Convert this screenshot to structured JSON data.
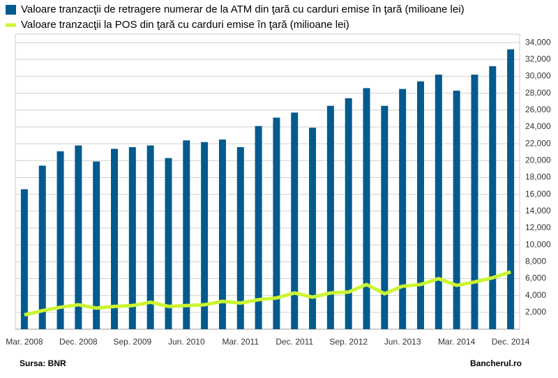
{
  "chart_data": {
    "type": "bar",
    "categories": [
      "Mar. 2008",
      null,
      null,
      "Dec. 2008",
      null,
      null,
      "Sep. 2009",
      null,
      null,
      "Jun. 2010",
      null,
      null,
      "Mar. 2011",
      null,
      null,
      "Dec. 2011",
      null,
      null,
      "Sep. 2012",
      null,
      null,
      "Jun. 2013",
      null,
      null,
      "Mar. 2014",
      null,
      null,
      "Dec. 2014"
    ],
    "series": [
      {
        "name": "Valoare tranzacţii de retragere numerar de la ATM din ţară cu carduri emise în ţară (milioane lei)",
        "type": "bar",
        "color": "#005b8f",
        "values": [
          16600,
          19400,
          21100,
          21800,
          19900,
          21400,
          21600,
          21800,
          20300,
          22400,
          22200,
          22500,
          21600,
          24100,
          25100,
          25700,
          23900,
          26500,
          27400,
          28600,
          26500,
          28500,
          29400,
          30200,
          28300,
          30200,
          31200,
          33200
        ]
      },
      {
        "name": "Valoare tranzacţii la POS din ţară cu carduri emise în ţară (milioane lei)",
        "type": "line",
        "color": "#ccf533",
        "values": [
          1700,
          2200,
          2600,
          2900,
          2500,
          2700,
          2800,
          3200,
          2700,
          2800,
          2900,
          3300,
          3100,
          3500,
          3700,
          4300,
          3800,
          4300,
          4400,
          5300,
          4200,
          5100,
          5300,
          6000,
          5200,
          5600,
          6100,
          6800
        ]
      }
    ],
    "ylim": [
      0,
      35000
    ],
    "yticks": [
      {
        "value": 2000,
        "label": "2,000"
      },
      {
        "value": 4000,
        "label": "4,000"
      },
      {
        "value": 6000,
        "label": "6,000"
      },
      {
        "value": 8000,
        "label": "8,000"
      },
      {
        "value": 10000,
        "label": "10,000"
      },
      {
        "value": 12000,
        "label": "12,000"
      },
      {
        "value": 14000,
        "label": "14,000"
      },
      {
        "value": 16000,
        "label": "16,000"
      },
      {
        "value": 18000,
        "label": "18,000"
      },
      {
        "value": 20000,
        "label": "20,000"
      },
      {
        "value": 22000,
        "label": "22,000"
      },
      {
        "value": 24000,
        "label": "24,000"
      },
      {
        "value": 26000,
        "label": "26,000"
      },
      {
        "value": 28000,
        "label": "28,000"
      },
      {
        "value": 30000,
        "label": "30,000"
      },
      {
        "value": 32000,
        "label": "32,000"
      },
      {
        "value": 34000,
        "label": "34,000"
      }
    ],
    "grid": true,
    "axis_side": "right",
    "source": "Sursa: BNR",
    "credit": "Bancherul.ro"
  }
}
